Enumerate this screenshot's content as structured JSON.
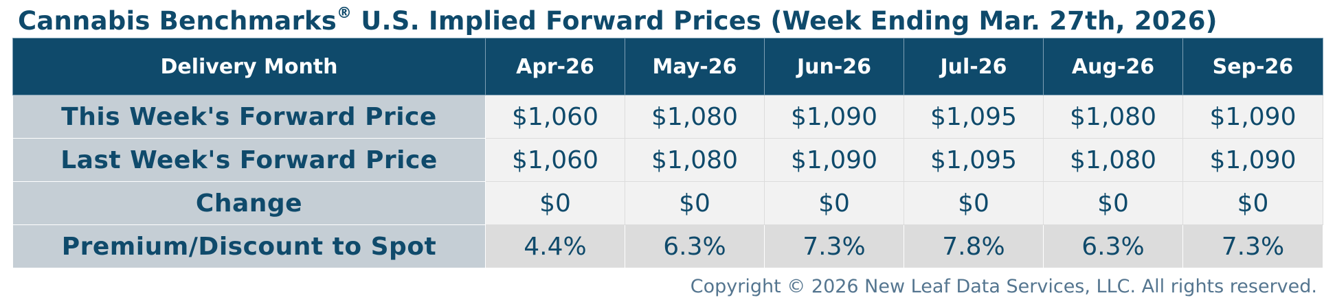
{
  "title": {
    "main": "Cannabis Benchmarks",
    "reg_mark": "®",
    "rest": " U.S. Implied Forward Prices (Week Ending Mar. 27th, 2026)"
  },
  "table": {
    "header_label": "Delivery Month",
    "months": [
      "Apr-26",
      "May-26",
      "Jun-26",
      "Jul-26",
      "Aug-26",
      "Sep-26"
    ],
    "rows": [
      {
        "label": "This Week's Forward Price",
        "values": [
          "$1,060",
          "$1,080",
          "$1,090",
          "$1,095",
          "$1,080",
          "$1,090"
        ]
      },
      {
        "label": "Last Week's Forward Price",
        "values": [
          "$1,060",
          "$1,080",
          "$1,090",
          "$1,095",
          "$1,080",
          "$1,090"
        ]
      },
      {
        "label": "Change",
        "values": [
          "$0",
          "$0",
          "$0",
          "$0",
          "$0",
          "$0"
        ]
      },
      {
        "label": "Premium/Discount to Spot",
        "values": [
          "4.4%",
          "6.3%",
          "7.3%",
          "7.8%",
          "6.3%",
          "7.3%"
        ]
      }
    ]
  },
  "copyright": "Copyright © 2026 New Leaf Data Services, LLC. All rights reserved.",
  "colors": {
    "navy": "#0f4a6b",
    "label_bg": "#c5ced5",
    "cell_bg": "#f2f2f2",
    "premium_bg": "#dcdcdc"
  }
}
